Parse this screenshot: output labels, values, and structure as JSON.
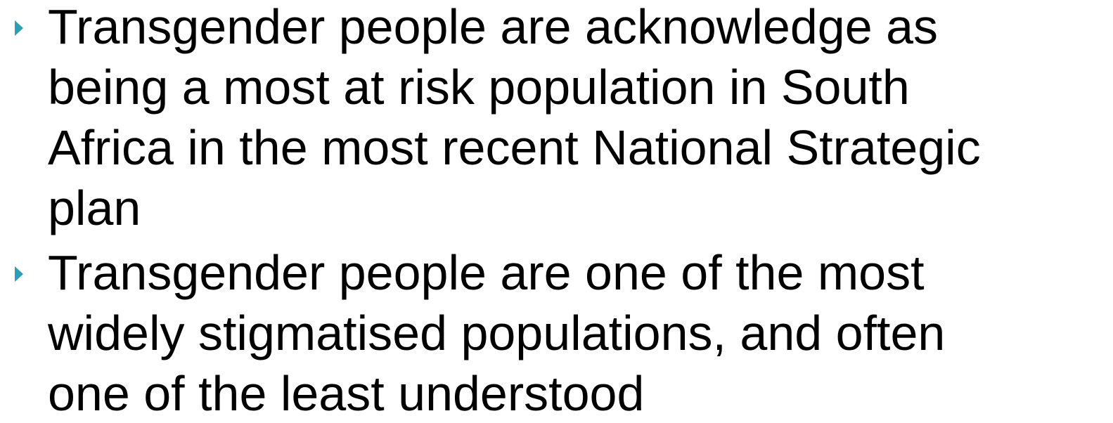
{
  "bullets": [
    {
      "lines": [
        "Transgender people are acknowledge as",
        "being a most at risk population in South",
        "Africa in the most recent National Strategic",
        "plan"
      ]
    },
    {
      "lines": [
        "Transgender people are one of the most",
        "widely stigmatised populations, and often",
        "one of the least understood"
      ]
    }
  ]
}
